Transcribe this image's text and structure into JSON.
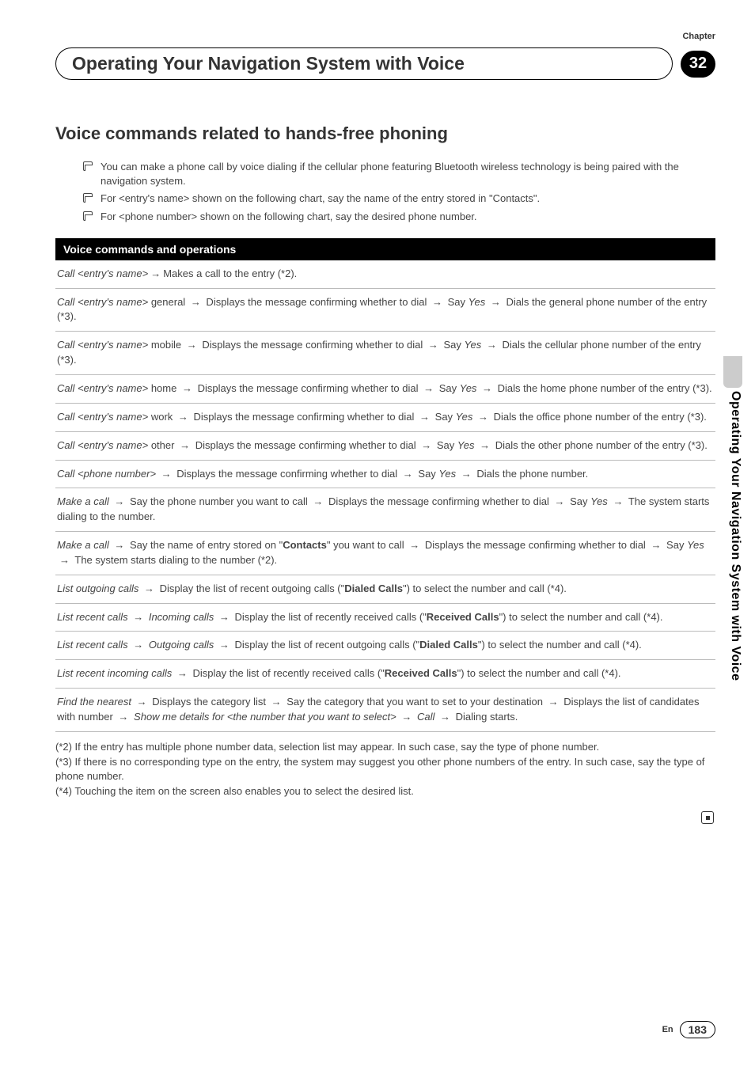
{
  "chapter": {
    "label": "Chapter",
    "number": "32"
  },
  "title": "Operating Your Navigation System with Voice",
  "side_tab": "Operating Your Navigation System with Voice",
  "section_heading": "Voice commands related to hands-free phoning",
  "bullets": [
    {
      "segments": [
        {
          "t": "You can make a phone call by voice dialing if the cellular phone featuring Bluetooth wireless technology is being paired with the navigation system."
        }
      ]
    },
    {
      "segments": [
        {
          "t": "For <entry's name> shown on the following chart, say the name of the entry stored in \""
        },
        {
          "t": "Contacts",
          "bold": true
        },
        {
          "t": "\"."
        }
      ]
    },
    {
      "segments": [
        {
          "t": "For <phone number> shown on the following chart, say the desired phone number."
        }
      ]
    }
  ],
  "black_bar": "Voice commands and operations",
  "commands": [
    [
      {
        "t": "Call <entry's name>",
        "ital": true
      },
      {
        "arrow": true
      },
      {
        "t": "Makes a call to the entry (*2)."
      }
    ],
    [
      {
        "t": "Call <entry's name>",
        "ital": true
      },
      {
        "t": " general "
      },
      {
        "arrow": true
      },
      {
        "t": " Displays the message confirming whether to dial "
      },
      {
        "arrow": true
      },
      {
        "t": " Say "
      },
      {
        "t": "Yes",
        "ital": true
      },
      {
        "t": " "
      },
      {
        "arrow": true
      },
      {
        "t": " Dials the general phone number of the entry (*3)."
      }
    ],
    [
      {
        "t": "Call <entry's name>",
        "ital": true
      },
      {
        "t": " mobile "
      },
      {
        "arrow": true
      },
      {
        "t": " Displays the message confirming whether to dial "
      },
      {
        "arrow": true
      },
      {
        "t": " Say "
      },
      {
        "t": "Yes",
        "ital": true
      },
      {
        "t": " "
      },
      {
        "arrow": true
      },
      {
        "t": " Dials the cellular phone number of the entry (*3)."
      }
    ],
    [
      {
        "t": "Call <entry's name>",
        "ital": true
      },
      {
        "t": " home "
      },
      {
        "arrow": true
      },
      {
        "t": " Displays the message confirming whether to dial "
      },
      {
        "arrow": true
      },
      {
        "t": " Say "
      },
      {
        "t": "Yes",
        "ital": true
      },
      {
        "t": " "
      },
      {
        "arrow": true
      },
      {
        "t": " Dials the home phone number of the entry (*3)."
      }
    ],
    [
      {
        "t": "Call <entry's name>",
        "ital": true
      },
      {
        "t": " work "
      },
      {
        "arrow": true
      },
      {
        "t": " Displays the message confirming whether to dial "
      },
      {
        "arrow": true
      },
      {
        "t": " Say "
      },
      {
        "t": "Yes",
        "ital": true
      },
      {
        "t": " "
      },
      {
        "arrow": true
      },
      {
        "t": " Dials the office phone number of the entry (*3)."
      }
    ],
    [
      {
        "t": "Call <entry's name>",
        "ital": true
      },
      {
        "t": " other "
      },
      {
        "arrow": true
      },
      {
        "t": " Displays the message confirming whether to dial "
      },
      {
        "arrow": true
      },
      {
        "t": " Say "
      },
      {
        "t": "Yes",
        "ital": true
      },
      {
        "t": " "
      },
      {
        "arrow": true
      },
      {
        "t": " Dials the other phone number of the entry (*3)."
      }
    ],
    [
      {
        "t": "Call <phone number>",
        "ital": true
      },
      {
        "t": " "
      },
      {
        "arrow": true
      },
      {
        "t": " Displays the message confirming whether to dial "
      },
      {
        "arrow": true
      },
      {
        "t": " Say "
      },
      {
        "t": "Yes",
        "ital": true
      },
      {
        "t": " "
      },
      {
        "arrow": true
      },
      {
        "t": " Dials the phone number."
      }
    ],
    [
      {
        "t": "Make a call",
        "ital": true
      },
      {
        "t": " "
      },
      {
        "arrow": true
      },
      {
        "t": " Say the phone number you want to call "
      },
      {
        "arrow": true
      },
      {
        "t": " Displays the message confirming whether to dial "
      },
      {
        "arrow": true
      },
      {
        "t": " Say "
      },
      {
        "t": "Yes",
        "ital": true
      },
      {
        "t": " "
      },
      {
        "arrow": true
      },
      {
        "t": " The system starts dialing to the number."
      }
    ],
    [
      {
        "t": "Make a call",
        "ital": true
      },
      {
        "t": " "
      },
      {
        "arrow": true
      },
      {
        "t": " Say the name of entry stored on \""
      },
      {
        "t": "Contacts",
        "bold": true
      },
      {
        "t": "\" you want to call "
      },
      {
        "arrow": true
      },
      {
        "t": " Displays the message confirming whether to dial "
      },
      {
        "arrow": true
      },
      {
        "t": " Say "
      },
      {
        "t": "Yes",
        "ital": true
      },
      {
        "t": " "
      },
      {
        "arrow": true
      },
      {
        "t": " The system starts dialing to the number (*2)."
      }
    ],
    [
      {
        "t": "List outgoing calls",
        "ital": true
      },
      {
        "t": " "
      },
      {
        "arrow": true
      },
      {
        "t": " Display the list of recent outgoing calls (\""
      },
      {
        "t": "Dialed Calls",
        "bold": true
      },
      {
        "t": "\") to select the number and call (*4)."
      }
    ],
    [
      {
        "t": "List recent calls",
        "ital": true
      },
      {
        "t": " "
      },
      {
        "arrow": true
      },
      {
        "t": " "
      },
      {
        "t": "Incoming calls",
        "ital": true
      },
      {
        "t": " "
      },
      {
        "arrow": true
      },
      {
        "t": " Display the list of recently received calls (\""
      },
      {
        "t": "Received Calls",
        "bold": true
      },
      {
        "t": "\") to select the number and call (*4)."
      }
    ],
    [
      {
        "t": "List recent calls",
        "ital": true
      },
      {
        "t": " "
      },
      {
        "arrow": true
      },
      {
        "t": " "
      },
      {
        "t": "Outgoing calls",
        "ital": true
      },
      {
        "t": " "
      },
      {
        "arrow": true
      },
      {
        "t": " Display the list of recent outgoing calls (\""
      },
      {
        "t": "Dialed Calls",
        "bold": true
      },
      {
        "t": "\") to select the number and call (*4)."
      }
    ],
    [
      {
        "t": "List recent incoming calls",
        "ital": true
      },
      {
        "t": " "
      },
      {
        "arrow": true
      },
      {
        "t": " Display the list of recently received calls (\""
      },
      {
        "t": "Received Calls",
        "bold": true
      },
      {
        "t": "\") to select the number and call (*4)."
      }
    ],
    [
      {
        "t": "Find the nearest",
        "ital": true
      },
      {
        "t": " "
      },
      {
        "arrow": true
      },
      {
        "t": " Displays the category list "
      },
      {
        "arrow": true
      },
      {
        "t": " Say the category that you want to set to your destination "
      },
      {
        "arrow": true
      },
      {
        "t": " Displays the list of candidates with number "
      },
      {
        "arrow": true
      },
      {
        "t": " "
      },
      {
        "t": "Show me details for <the number that you want to select>",
        "ital": true
      },
      {
        "t": " "
      },
      {
        "arrow": true
      },
      {
        "t": " "
      },
      {
        "t": "Call",
        "ital": true
      },
      {
        "t": " "
      },
      {
        "arrow": true
      },
      {
        "t": " Dialing starts."
      }
    ]
  ],
  "notes": [
    "(*2) If the entry has multiple phone number data, selection list may appear. In such case, say the type of phone number.",
    "(*3) If there is no corresponding type on the entry, the system may suggest you other phone numbers of the entry. In such case, say the type of phone number.",
    "(*4) Touching the item on the screen also enables you to select the desired list."
  ],
  "footer": {
    "lang": "En",
    "page": "183"
  },
  "colors": {
    "text": "#444444",
    "black": "#000000",
    "divider": "#bbbbbb",
    "tab_bg": "#cccccc"
  }
}
